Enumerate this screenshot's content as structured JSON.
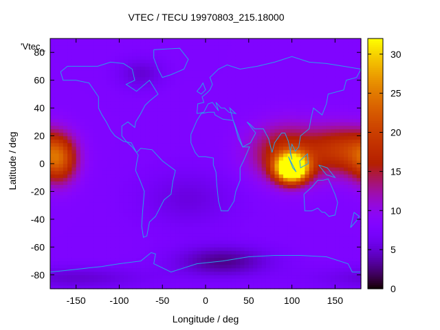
{
  "chart_data": {
    "type": "heatmap",
    "title": "VTEC / TECU 19970803_215.18000",
    "xlabel": "Longitude / deg",
    "ylabel": "Latitude / deg",
    "legend_entry": "'Vtec_",
    "xlim": [
      -180,
      180
    ],
    "ylim": [
      -90,
      90
    ],
    "x_ticks": [
      -150,
      -100,
      -50,
      0,
      50,
      100,
      150
    ],
    "y_ticks": [
      -80,
      -60,
      -40,
      -20,
      0,
      20,
      40,
      60,
      80
    ],
    "colorbar": {
      "range": [
        0,
        32
      ],
      "ticks": [
        0,
        5,
        10,
        15,
        20,
        25,
        30
      ]
    },
    "background_level": 8,
    "features": [
      {
        "name": "asia-pacific-anomaly",
        "lon": 100,
        "lat": -3,
        "peak": 32,
        "sigma_lon": 13,
        "sigma_lat": 7
      },
      {
        "name": "asia-pacific-band",
        "lon": 95,
        "lat": 8,
        "peak": 10,
        "sigma_lon": 30,
        "sigma_lat": 14
      },
      {
        "name": "west-pacific-band",
        "lon": 160,
        "lat": 10,
        "peak": 10,
        "sigma_lon": 25,
        "sigma_lat": 12
      },
      {
        "name": "east-pacific-band",
        "lon": -170,
        "lat": 3,
        "peak": 12,
        "sigma_lon": 15,
        "sigma_lat": 12
      },
      {
        "name": "south-atlantic-low",
        "lon": -20,
        "lat": -25,
        "peak": -2.5,
        "sigma_lon": 40,
        "sigma_lat": 15
      },
      {
        "name": "canada-low",
        "lon": -75,
        "lat": 65,
        "peak": -3,
        "sigma_lon": 20,
        "sigma_lat": 8
      },
      {
        "name": "antarctic-low",
        "lon": 20,
        "lat": -70,
        "peak": -5,
        "sigma_lon": 40,
        "sigma_lat": 8
      },
      {
        "name": "south-pole-low",
        "lon": -150,
        "lat": -82,
        "peak": -3,
        "sigma_lon": 60,
        "sigma_lat": 6
      }
    ]
  }
}
